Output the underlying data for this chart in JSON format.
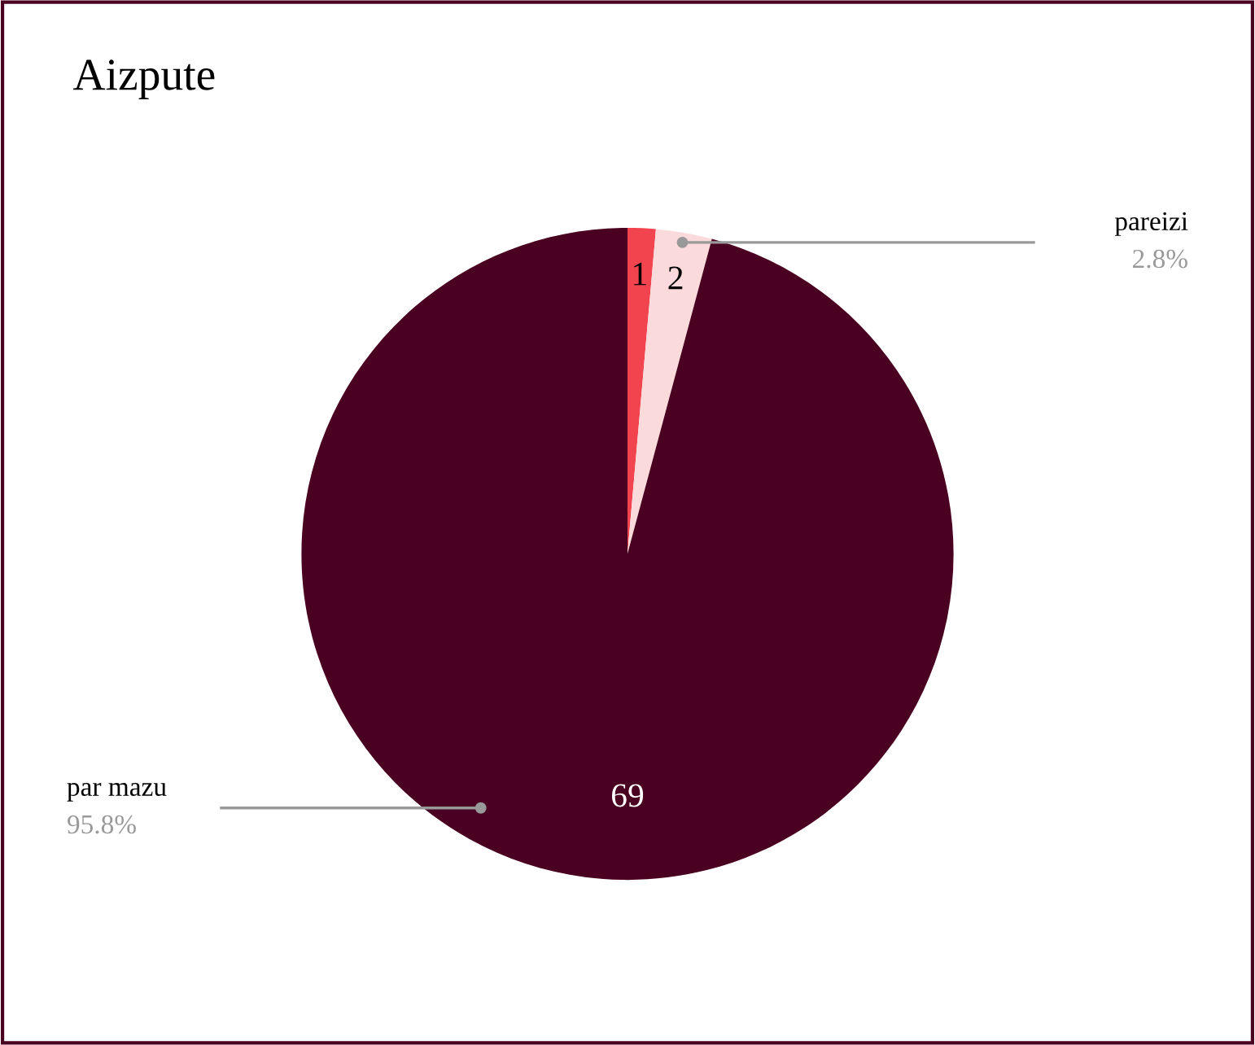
{
  "chart_data": {
    "type": "pie",
    "title": "Aizpute",
    "categories": [
      null,
      "pareizi",
      "par mazu"
    ],
    "values": [
      1,
      2,
      69
    ],
    "colors": [
      "#f2444f",
      "#fadadb",
      "#4a0020"
    ],
    "data_labels": true,
    "annotations": [
      "2.8%",
      "95.8%"
    ],
    "legend": false
  }
}
